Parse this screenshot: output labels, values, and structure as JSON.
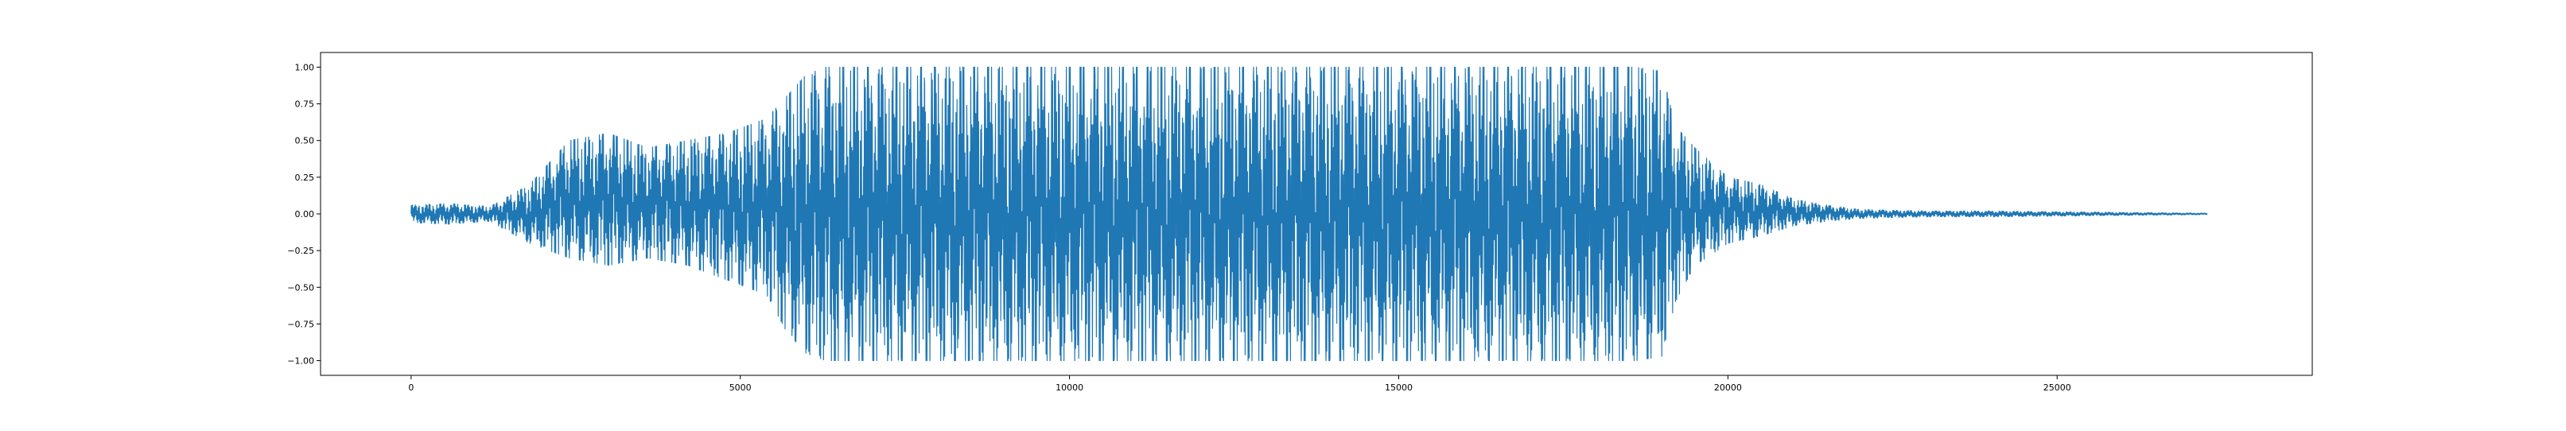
{
  "chart_data": {
    "type": "line",
    "title": "",
    "xlabel": "",
    "ylabel": "",
    "xlim": [
      -1375,
      28875
    ],
    "ylim": [
      -1.1,
      1.1
    ],
    "grid": false,
    "legend": "none",
    "color": "#1f77b4",
    "x_ticks": [
      0,
      5000,
      10000,
      15000,
      20000,
      25000
    ],
    "x_tick_labels": [
      "0",
      "5000",
      "10000",
      "15000",
      "20000",
      "25000"
    ],
    "y_ticks": [
      -1.0,
      -0.75,
      -0.5,
      -0.25,
      0.0,
      0.25,
      0.5,
      0.75,
      1.0
    ],
    "y_tick_labels": [
      "−1.00",
      "−0.75",
      "−0.50",
      "−0.25",
      "0.00",
      "0.25",
      "0.50",
      "0.75",
      "1.00"
    ],
    "series": [
      {
        "n_samples": 27280,
        "envelope": {
          "x": [
            0,
            600,
            1200,
            1800,
            2400,
            3000,
            3600,
            4200,
            4800,
            5400,
            5700,
            6000,
            6300,
            7000,
            8000,
            9000,
            10000,
            11000,
            12000,
            13000,
            14000,
            15000,
            16000,
            17000,
            18000,
            18600,
            19000,
            19200,
            19500,
            20000,
            20500,
            21000,
            21500,
            22000,
            23000,
            24000,
            25000,
            26000,
            27280
          ],
          "upper": [
            0.06,
            0.07,
            0.05,
            0.2,
            0.5,
            0.55,
            0.45,
            0.5,
            0.55,
            0.65,
            0.8,
            0.95,
            1.0,
            1.0,
            1.0,
            1.0,
            1.0,
            1.0,
            1.0,
            1.0,
            1.0,
            1.0,
            1.0,
            1.0,
            1.0,
            1.0,
            0.97,
            0.6,
            0.45,
            0.25,
            0.2,
            0.1,
            0.06,
            0.03,
            0.02,
            0.02,
            0.015,
            0.01,
            0.005
          ],
          "lower": [
            -0.06,
            -0.07,
            -0.05,
            -0.2,
            -0.3,
            -0.35,
            -0.3,
            -0.35,
            -0.45,
            -0.55,
            -0.8,
            -0.95,
            -1.0,
            -1.0,
            -1.0,
            -1.0,
            -1.0,
            -1.0,
            -1.0,
            -1.0,
            -1.0,
            -1.0,
            -1.0,
            -1.0,
            -1.0,
            -1.0,
            -0.97,
            -0.6,
            -0.35,
            -0.2,
            -0.15,
            -0.08,
            -0.05,
            -0.03,
            -0.02,
            -0.02,
            -0.015,
            -0.01,
            -0.005
          ]
        }
      }
    ]
  }
}
